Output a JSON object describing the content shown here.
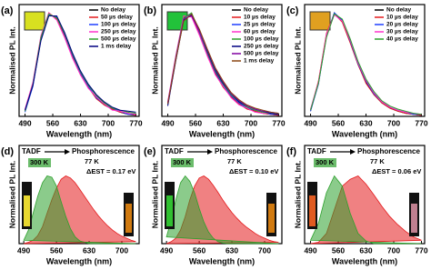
{
  "chart_data": [
    {
      "type": "line",
      "label": "(a)",
      "xlabel": "Wavelength (nm)",
      "ylabel": "Normalised PL Int.",
      "x": [
        490,
        510,
        530,
        550,
        570,
        590,
        610,
        630,
        650,
        670,
        690,
        710,
        730,
        750,
        770
      ],
      "xlim": [
        475,
        778
      ],
      "xticks": [
        490,
        560,
        630,
        700,
        770
      ],
      "ylim": [
        0,
        1.08
      ],
      "series": [
        {
          "name": "No delay",
          "color": "#000000",
          "values": [
            0.05,
            0.3,
            0.75,
            0.99,
            0.95,
            0.78,
            0.58,
            0.41,
            0.28,
            0.18,
            0.11,
            0.07,
            0.04,
            0.02,
            0.01
          ]
        },
        {
          "name": "50 µs delay",
          "color": "#e41a1c",
          "values": [
            0.06,
            0.32,
            0.77,
            1.0,
            0.94,
            0.77,
            0.57,
            0.4,
            0.28,
            0.17,
            0.11,
            0.07,
            0.04,
            0.03,
            0.01
          ]
        },
        {
          "name": "100 µs delay",
          "color": "#1f3fff",
          "values": [
            0.04,
            0.29,
            0.74,
            0.98,
            0.96,
            0.79,
            0.59,
            0.42,
            0.29,
            0.18,
            0.12,
            0.08,
            0.05,
            0.02,
            0.02
          ]
        },
        {
          "name": "250 µs delay",
          "color": "#ff33cc",
          "values": [
            0.07,
            0.33,
            0.78,
            1.0,
            0.93,
            0.76,
            0.56,
            0.4,
            0.27,
            0.19,
            0.12,
            0.06,
            0.05,
            0.03,
            0.02
          ]
        },
        {
          "name": "500 µs delay",
          "color": "#2ca02c",
          "values": [
            0.05,
            0.31,
            0.76,
            0.99,
            0.95,
            0.8,
            0.6,
            0.43,
            0.3,
            0.2,
            0.13,
            0.08,
            0.06,
            0.04,
            0.03
          ]
        },
        {
          "name": "1 ms delay",
          "color": "#000080",
          "values": [
            0.06,
            0.3,
            0.73,
            0.97,
            0.97,
            0.81,
            0.61,
            0.44,
            0.31,
            0.21,
            0.14,
            0.09,
            0.06,
            0.05,
            0.04
          ]
        }
      ]
    },
    {
      "type": "line",
      "label": "(b)",
      "xlabel": "Wavelength (nm)",
      "ylabel": "Normalised PL Int.",
      "x": [
        490,
        510,
        530,
        550,
        570,
        590,
        610,
        630,
        650,
        670,
        690,
        710,
        730,
        750,
        770
      ],
      "xlim": [
        475,
        778
      ],
      "xticks": [
        490,
        560,
        630,
        700,
        770
      ],
      "ylim": [
        0,
        1.08
      ],
      "series": [
        {
          "name": "No delay",
          "color": "#000000",
          "values": [
            0.12,
            0.55,
            0.95,
            0.97,
            0.8,
            0.6,
            0.42,
            0.29,
            0.19,
            0.12,
            0.08,
            0.05,
            0.03,
            0.02,
            0.01
          ]
        },
        {
          "name": "10 µs delay",
          "color": "#e41a1c",
          "values": [
            0.13,
            0.57,
            0.96,
            0.98,
            0.79,
            0.59,
            0.41,
            0.28,
            0.19,
            0.12,
            0.07,
            0.05,
            0.03,
            0.02,
            0.01
          ]
        },
        {
          "name": "25 µs delay",
          "color": "#1f3fff",
          "values": [
            0.11,
            0.54,
            0.94,
            0.99,
            0.81,
            0.61,
            0.43,
            0.3,
            0.2,
            0.13,
            0.08,
            0.06,
            0.04,
            0.02,
            0.02
          ]
        },
        {
          "name": "60 µs delay",
          "color": "#ff33cc",
          "values": [
            0.14,
            0.58,
            0.97,
            0.96,
            0.78,
            0.58,
            0.4,
            0.29,
            0.18,
            0.11,
            0.08,
            0.04,
            0.03,
            0.03,
            0.02
          ]
        },
        {
          "name": "100 µs delay",
          "color": "#2ca02c",
          "values": [
            0.12,
            0.56,
            0.95,
            1.0,
            0.82,
            0.62,
            0.44,
            0.31,
            0.21,
            0.14,
            0.09,
            0.06,
            0.04,
            0.03,
            0.02
          ]
        },
        {
          "name": "250 µs delay",
          "color": "#000080",
          "values": [
            0.1,
            0.53,
            0.93,
            0.98,
            0.83,
            0.63,
            0.45,
            0.32,
            0.22,
            0.14,
            0.1,
            0.07,
            0.05,
            0.03,
            0.02
          ]
        },
        {
          "name": "500 µs delay",
          "color": "#8000a0",
          "values": [
            0.13,
            0.55,
            0.94,
            0.97,
            0.82,
            0.64,
            0.46,
            0.33,
            0.22,
            0.15,
            0.1,
            0.07,
            0.05,
            0.04,
            0.03
          ]
        },
        {
          "name": "1 ms delay",
          "color": "#8b4513",
          "values": [
            0.12,
            0.54,
            0.92,
            0.99,
            0.84,
            0.65,
            0.47,
            0.34,
            0.23,
            0.16,
            0.11,
            0.08,
            0.06,
            0.04,
            0.03
          ]
        }
      ]
    },
    {
      "type": "line",
      "label": "(c)",
      "xlabel": "Wavelength (nm)",
      "ylabel": "Normalised PL Int.",
      "x": [
        490,
        510,
        530,
        550,
        570,
        590,
        610,
        630,
        650,
        670,
        690,
        710,
        730,
        750,
        770
      ],
      "xlim": [
        475,
        778
      ],
      "xticks": [
        490,
        560,
        630,
        700,
        770
      ],
      "ylim": [
        0,
        1.08
      ],
      "series": [
        {
          "name": "No delay",
          "color": "#000000",
          "values": [
            0.05,
            0.32,
            0.78,
            1.0,
            0.92,
            0.72,
            0.5,
            0.33,
            0.21,
            0.13,
            0.08,
            0.05,
            0.03,
            0.02,
            0.01
          ]
        },
        {
          "name": "10 µs delay",
          "color": "#e41a1c",
          "values": [
            0.06,
            0.34,
            0.8,
            0.99,
            0.91,
            0.71,
            0.5,
            0.32,
            0.21,
            0.13,
            0.08,
            0.05,
            0.03,
            0.02,
            0.01
          ]
        },
        {
          "name": "20 µs delay",
          "color": "#1f3fff",
          "values": [
            0.05,
            0.31,
            0.77,
            1.0,
            0.93,
            0.73,
            0.51,
            0.34,
            0.22,
            0.14,
            0.09,
            0.06,
            0.04,
            0.02,
            0.02
          ]
        },
        {
          "name": "30 µs delay",
          "color": "#ff33cc",
          "values": [
            0.07,
            0.33,
            0.79,
            0.98,
            0.92,
            0.74,
            0.52,
            0.35,
            0.23,
            0.14,
            0.09,
            0.06,
            0.04,
            0.03,
            0.02
          ]
        },
        {
          "name": "40 µs delay",
          "color": "#2ca02c",
          "values": [
            0.06,
            0.32,
            0.76,
            0.99,
            0.94,
            0.75,
            0.53,
            0.36,
            0.24,
            0.15,
            0.1,
            0.07,
            0.05,
            0.03,
            0.02
          ]
        }
      ]
    },
    {
      "type": "area",
      "label": "(d)",
      "xlabel": "Wavelength (nm)",
      "ylabel": "Normalised PL Int.",
      "annotations": [
        "300 K",
        "77 K",
        "ΔEST = 0.17 eV"
      ],
      "x": [
        490,
        500,
        510,
        520,
        530,
        540,
        550,
        560,
        570,
        580,
        590,
        600,
        610,
        620,
        630,
        640,
        650,
        660,
        670,
        680,
        690,
        700,
        710,
        720,
        730
      ],
      "xlim": [
        480,
        737
      ],
      "xticks": [
        490,
        560,
        630,
        700
      ],
      "ylim": [
        0,
        1.45
      ],
      "series": [
        {
          "name": "TADF",
          "color": "#2ca02c",
          "values": [
            0.05,
            0.2,
            0.45,
            0.7,
            0.9,
            1.0,
            0.98,
            0.85,
            0.62,
            0.4,
            0.22,
            0.1,
            0.04,
            0.02,
            0,
            0,
            0,
            0,
            0,
            0,
            0,
            0,
            0,
            0,
            0
          ]
        },
        {
          "name": "Phosphorescence",
          "color": "#e41a1c",
          "values": [
            0,
            0.02,
            0.05,
            0.12,
            0.25,
            0.45,
            0.65,
            0.82,
            0.95,
            1.0,
            0.97,
            0.9,
            0.8,
            0.7,
            0.6,
            0.5,
            0.41,
            0.33,
            0.26,
            0.2,
            0.15,
            0.11,
            0.08,
            0.05,
            0.03
          ]
        }
      ]
    },
    {
      "type": "area",
      "label": "(e)",
      "xlabel": "Wavelength (nm)",
      "ylabel": "Normalised PL Int.",
      "annotations": [
        "300 K",
        "77 K",
        "ΔEST = 0.10 eV"
      ],
      "x": [
        490,
        500,
        510,
        520,
        530,
        540,
        550,
        560,
        570,
        580,
        590,
        600,
        610,
        620,
        630,
        640,
        650,
        660,
        670,
        680,
        690,
        700,
        710,
        720,
        730
      ],
      "xlim": [
        480,
        737
      ],
      "xticks": [
        490,
        560,
        630,
        700
      ],
      "ylim": [
        0,
        1.45
      ],
      "series": [
        {
          "name": "TADF",
          "color": "#2ca02c",
          "values": [
            0.1,
            0.35,
            0.65,
            0.9,
            1.0,
            0.92,
            0.75,
            0.52,
            0.32,
            0.17,
            0.08,
            0.03,
            0.01,
            0,
            0,
            0,
            0,
            0,
            0,
            0,
            0,
            0,
            0,
            0,
            0
          ]
        },
        {
          "name": "Phosphorescence",
          "color": "#e41a1c",
          "values": [
            0,
            0.03,
            0.08,
            0.2,
            0.4,
            0.65,
            0.85,
            0.97,
            1.0,
            0.95,
            0.86,
            0.76,
            0.65,
            0.55,
            0.46,
            0.38,
            0.31,
            0.25,
            0.2,
            0.15,
            0.11,
            0.08,
            0.05,
            0.03,
            0.02
          ]
        }
      ]
    },
    {
      "type": "area",
      "label": "(f)",
      "xlabel": "Wavelength (nm)",
      "ylabel": "Normalised PL Int.",
      "annotations": [
        "300 K",
        "77 K",
        "ΔEST = 0.06 eV"
      ],
      "x": [
        490,
        510,
        530,
        550,
        570,
        590,
        610,
        630,
        650,
        670,
        690,
        710,
        730,
        750,
        770
      ],
      "xlim": [
        475,
        778
      ],
      "xticks": [
        490,
        560,
        630,
        700,
        770
      ],
      "ylim": [
        0,
        1.45
      ],
      "series": [
        {
          "name": "TADF",
          "color": "#2ca02c",
          "values": [
            0.05,
            0.3,
            0.75,
            1.0,
            0.85,
            0.45,
            0.15,
            0.04,
            0,
            0,
            0,
            0,
            0,
            0,
            0
          ]
        },
        {
          "name": "Phosphorescence",
          "color": "#e41a1c",
          "values": [
            0,
            0.02,
            0.15,
            0.5,
            0.85,
            0.95,
            1.0,
            0.88,
            0.72,
            0.55,
            0.4,
            0.28,
            0.18,
            0.1,
            0.05
          ]
        }
      ]
    }
  ]
}
